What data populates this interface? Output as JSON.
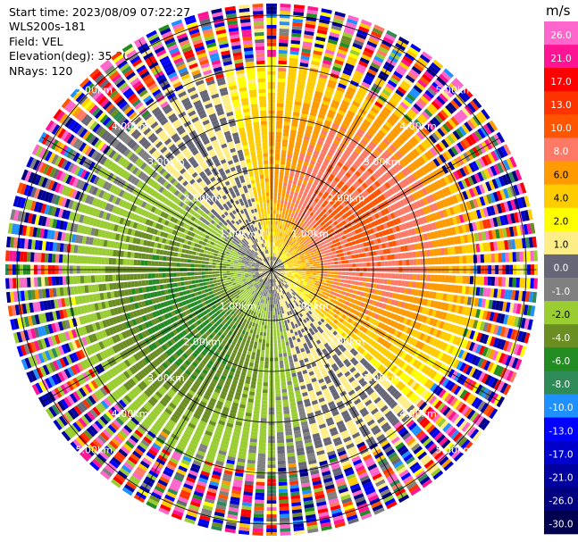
{
  "header": {
    "start_time": "Start time: 2023/08/09 07:22:27",
    "instrument": "WLS200s-181",
    "field": "Field: VEL",
    "elevation": "Elevation(deg): 35.30",
    "nrays": "NRays: 120"
  },
  "chart_data": {
    "type": "ppi",
    "field": "VEL",
    "units": "m/s",
    "elevation_deg": 35.3,
    "nrays": 120,
    "range_ring_labels": [
      "1.00km",
      "2.00km",
      "3.00km",
      "4.00km",
      "5.00km"
    ],
    "range_rings_km": [
      1,
      2,
      3,
      4,
      5
    ],
    "max_range_km": 5.2,
    "colorbar": {
      "unit_label": "m/s",
      "levels": [
        26.0,
        21.0,
        17.0,
        13.0,
        10.0,
        8.0,
        6.0,
        4.0,
        2.0,
        1.0,
        0.0,
        -1.0,
        -2.0,
        -4.0,
        -6.0,
        -8.0,
        -10.0,
        -13.0,
        -17.0,
        -21.0,
        -26.0,
        -30.0
      ],
      "tick_labels": [
        "26.0",
        "21.0",
        "17.0",
        "13.0",
        "10.0",
        "8.0",
        "6.0",
        "4.0",
        "2.0",
        "1.0",
        "0.0",
        "-1.0",
        "-2.0",
        "-4.0",
        "-6.0",
        "-8.0",
        "-10.0",
        "-13.0",
        "-17.0",
        "-21.0",
        "-26.0",
        "-30.0"
      ],
      "colors": [
        "#ff66cc",
        "#ff1493",
        "#ff0000",
        "#ff3300",
        "#ff5500",
        "#ff7a66",
        "#ff9a00",
        "#ffcc00",
        "#ffff00",
        "#ffee88",
        "#666677",
        "#808080",
        "#9acd32",
        "#6b8e23",
        "#228b22",
        "#2e8b57",
        "#1e90ff",
        "#0000ff",
        "#0000cd",
        "#0000a0",
        "#000080",
        "#000050"
      ]
    },
    "structure": {
      "positive_center_azimuth_deg": 60,
      "negative_center_azimuth_deg": 240,
      "peak_positive_ms": 8.0,
      "peak_negative_ms": -6.0,
      "clean_data_range_km": 4.0
    }
  }
}
